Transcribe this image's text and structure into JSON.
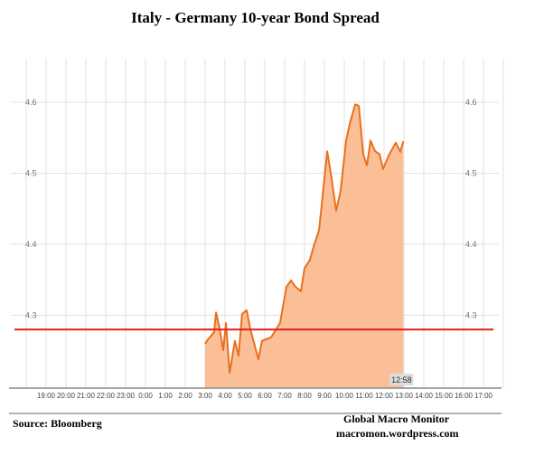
{
  "chart_data": {
    "type": "area",
    "title": "Italy - Germany 10-year Bond Spread",
    "xlabel": "",
    "ylabel": "",
    "ylim": [
      4.22,
      4.665
    ],
    "yticks": [
      "4.6",
      "4.5",
      "4.4",
      "4.3"
    ],
    "ytick_values": [
      4.6,
      4.5,
      4.4,
      4.3
    ],
    "xtick_labels": [
      "19:00",
      "20:00",
      "21:00",
      "22:00",
      "23:00",
      "0:00",
      "1:00",
      "2:00",
      "3:00",
      "4:00",
      "5:00",
      "6:00",
      "7:00",
      "8:00",
      "9:00",
      "10:00",
      "11:00",
      "12:00",
      "13:00",
      "14:00",
      "15:00",
      "16:00",
      "17:00"
    ],
    "x_unit": "hours after 19:00 previous day",
    "xlim": [
      -1,
      23
    ],
    "grid": true,
    "last_time_label": "12:58",
    "reference_line": {
      "value": 4.28,
      "color": "#e0201a"
    },
    "series": [
      {
        "name": "Spread",
        "color": "#e8701e",
        "fill": "#fbbf98",
        "x": [
          8.0,
          8.14,
          8.45,
          8.55,
          8.73,
          8.91,
          9.05,
          9.23,
          9.5,
          9.68,
          9.86,
          10.09,
          10.27,
          10.68,
          10.86,
          11.32,
          11.77,
          12.09,
          12.32,
          12.55,
          12.82,
          13.0,
          13.27,
          13.45,
          13.73,
          13.91,
          14.14,
          14.36,
          14.59,
          14.82,
          15.09,
          15.27,
          15.55,
          15.73,
          15.95,
          16.14,
          16.32,
          16.55,
          16.77,
          16.95,
          17.23,
          17.59,
          17.82,
          17.97
        ],
        "y": [
          4.26,
          4.266,
          4.276,
          4.304,
          4.281,
          4.251,
          4.289,
          4.219,
          4.264,
          4.243,
          4.302,
          4.307,
          4.281,
          4.238,
          4.264,
          4.269,
          4.289,
          4.34,
          4.349,
          4.34,
          4.334,
          4.366,
          4.378,
          4.396,
          4.42,
          4.468,
          4.531,
          4.493,
          4.447,
          4.476,
          4.546,
          4.569,
          4.597,
          4.595,
          4.527,
          4.511,
          4.546,
          4.531,
          4.527,
          4.506,
          4.525,
          4.543,
          4.53,
          4.545
        ]
      }
    ]
  },
  "footer": {
    "source": "Source:  Bloomberg",
    "brand": "Global Macro Monitor",
    "url": "macromon.wordpress.com"
  }
}
